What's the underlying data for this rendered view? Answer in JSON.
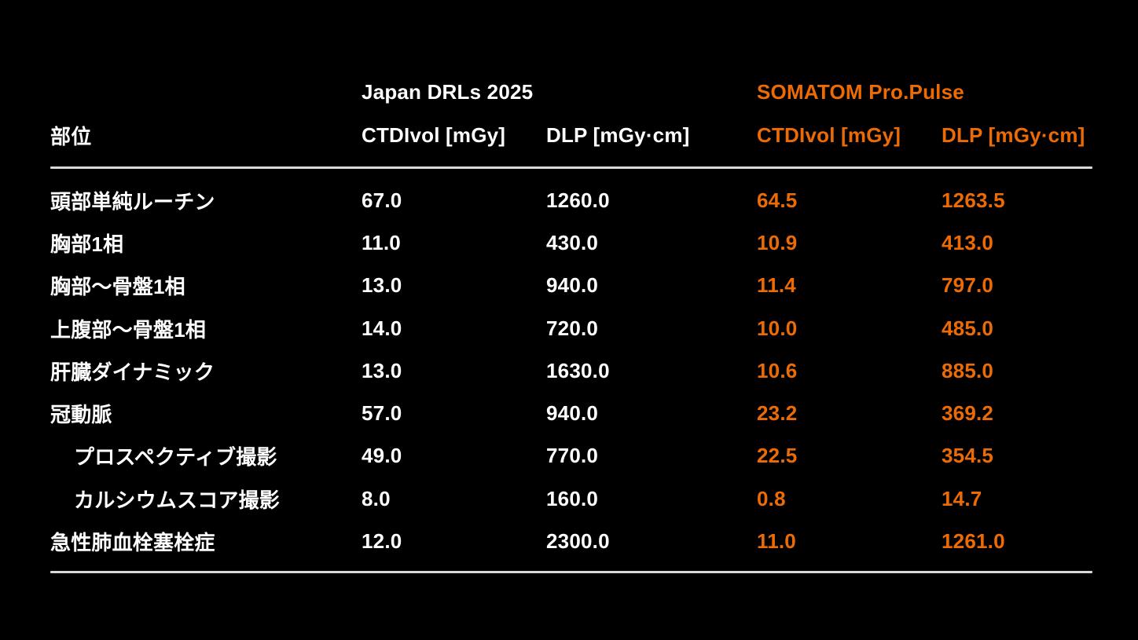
{
  "table": {
    "group_japan": "Japan DRLs 2025",
    "group_somatom": "SOMATOM Pro.Pulse",
    "col_part": "部位",
    "col_jp_ctdi": "CTDIvol [mGy]",
    "col_jp_dlp": "DLP [mGy·cm]",
    "col_som_ctdi": "CTDIvol [mGy]",
    "col_som_dlp": "DLP [mGy·cm]",
    "rows": [
      {
        "label": "頭部単純ルーチン",
        "indent": false,
        "jp_ctdi": "67.0",
        "jp_dlp": "1260.0",
        "som_ctdi": "64.5",
        "som_dlp": "1263.5"
      },
      {
        "label": "胸部1相",
        "indent": false,
        "jp_ctdi": "11.0",
        "jp_dlp": "430.0",
        "som_ctdi": "10.9",
        "som_dlp": "413.0"
      },
      {
        "label": "胸部～骨盤1相",
        "indent": false,
        "jp_ctdi": "13.0",
        "jp_dlp": "940.0",
        "som_ctdi": "11.4",
        "som_dlp": "797.0"
      },
      {
        "label": "上腹部～骨盤1相",
        "indent": false,
        "jp_ctdi": "14.0",
        "jp_dlp": "720.0",
        "som_ctdi": "10.0",
        "som_dlp": "485.0"
      },
      {
        "label": "肝臓ダイナミック",
        "indent": false,
        "jp_ctdi": "13.0",
        "jp_dlp": "1630.0",
        "som_ctdi": "10.6",
        "som_dlp": "885.0"
      },
      {
        "label": "冠動脈",
        "indent": false,
        "jp_ctdi": "57.0",
        "jp_dlp": "940.0",
        "som_ctdi": "23.2",
        "som_dlp": "369.2"
      },
      {
        "label": "プロスペクティブ撮影",
        "indent": true,
        "jp_ctdi": "49.0",
        "jp_dlp": "770.0",
        "som_ctdi": "22.5",
        "som_dlp": "354.5"
      },
      {
        "label": "カルシウムスコア撮影",
        "indent": true,
        "jp_ctdi": "8.0",
        "jp_dlp": "160.0",
        "som_ctdi": "0.8",
        "som_dlp": "14.7"
      },
      {
        "label": "急性肺血栓塞栓症",
        "indent": false,
        "jp_ctdi": "12.0",
        "jp_dlp": "2300.0",
        "som_ctdi": "11.0",
        "som_dlp": "1261.0"
      }
    ]
  },
  "colors": {
    "background": "#000000",
    "text_white": "#ffffff",
    "accent_orange": "#ED6B05",
    "rule": "#d9d9d9"
  }
}
